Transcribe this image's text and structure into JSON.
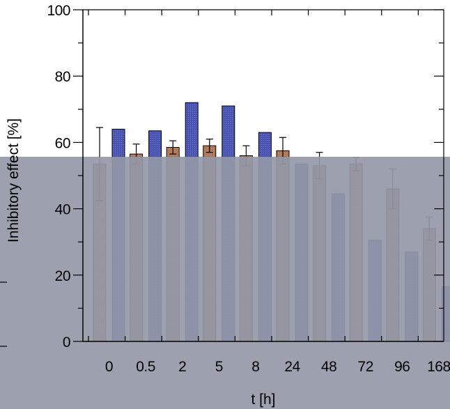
{
  "chart_data": {
    "type": "bar",
    "title": "",
    "xlabel": "t [h]",
    "ylabel": "Inhibitory effect [%]",
    "ylim": [
      0,
      100
    ],
    "yticks": [
      0,
      20,
      40,
      60,
      80,
      100
    ],
    "categories": [
      "0",
      "0.5",
      "2",
      "5",
      "8",
      "24",
      "48",
      "72",
      "96",
      "168"
    ],
    "series": [
      {
        "color": "#b07a5a",
        "values": [
          53.5,
          56.5,
          58.5,
          59,
          56,
          57.5,
          53,
          53.5,
          46,
          34
        ],
        "errors": [
          11,
          3,
          2,
          2,
          3,
          4,
          4,
          2,
          6,
          3.5
        ]
      },
      {
        "color": "#4a55b5",
        "values": [
          64,
          63.5,
          72,
          71,
          63,
          53.5,
          44.5,
          30.5,
          27,
          16.5
        ]
      }
    ],
    "grid": false,
    "legend": "none"
  },
  "overlay": {
    "color": "#9498a8",
    "opacity": 0.92
  }
}
